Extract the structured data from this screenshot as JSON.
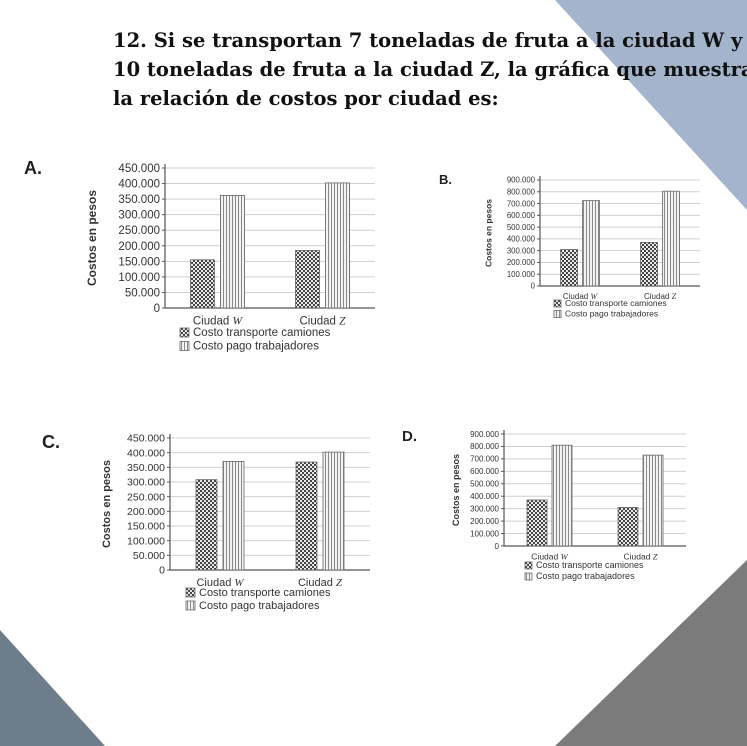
{
  "question": {
    "lines": [
      "12. Si se  transportan 7 toneladas de fruta  a la ciudad W y",
      "10 toneladas de fruta a la ciudad  Z,  la gráfica que  muestra",
      "la  relación de  costos por ciudad es:"
    ]
  },
  "decor_colors": {
    "slate": "#a3b4cc",
    "gray": "#7b7b7b",
    "dark_slate": "#6d7d8c"
  },
  "options": {
    "a": {
      "letter": "A."
    },
    "b": {
      "letter": "B."
    },
    "c": {
      "letter": "C."
    },
    "d": {
      "letter": "D."
    }
  },
  "chart_data": [
    {
      "type": "bar",
      "option": "A",
      "categories": [
        "Ciudad W",
        "Ciudad Z"
      ],
      "series": [
        {
          "name": "Costo transporte camiones",
          "values": [
            155000,
            185000
          ]
        },
        {
          "name": "Costo pago trabajadores",
          "values": [
            362000,
            402000
          ]
        }
      ],
      "ylabel": "Costos en pesos",
      "ylim": [
        0,
        450000
      ],
      "yticks": [
        "0",
        "50.000",
        "100.000",
        "150.000",
        "200.000",
        "250.000",
        "300.000",
        "350.000",
        "400.000",
        "450.000"
      ]
    },
    {
      "type": "bar",
      "option": "B",
      "categories": [
        "Ciudad W",
        "Ciudad Z"
      ],
      "series": [
        {
          "name": "Costo transporte camiones",
          "values": [
            310000,
            370000
          ]
        },
        {
          "name": "Costo pago trabajadores",
          "values": [
            725000,
            805000
          ]
        }
      ],
      "ylabel": "Costos en pesos",
      "ylim": [
        0,
        900000
      ],
      "yticks": [
        "0",
        "100.000",
        "200.000",
        "300.000",
        "400.000",
        "500.000",
        "600.000",
        "700.000",
        "800.000",
        "900.000"
      ]
    },
    {
      "type": "bar",
      "option": "C",
      "categories": [
        "Ciudad W",
        "Ciudad Z"
      ],
      "series": [
        {
          "name": "Costo transporte camiones",
          "values": [
            308000,
            368000
          ]
        },
        {
          "name": "Costo pago trabajadores",
          "values": [
            370000,
            402000
          ]
        }
      ],
      "ylabel": "Costos en pesos",
      "ylim": [
        0,
        450000
      ],
      "yticks": [
        "0",
        "50.000",
        "100.000",
        "150.000",
        "200.000",
        "250.000",
        "300.000",
        "350.000",
        "400.000",
        "450.000"
      ]
    },
    {
      "type": "bar",
      "option": "D",
      "categories": [
        "Ciudad W",
        "Ciudad Z"
      ],
      "series": [
        {
          "name": "Costo transporte camiones",
          "values": [
            370000,
            310000
          ]
        },
        {
          "name": "Costo pago trabajadores",
          "values": [
            810000,
            730000
          ]
        }
      ],
      "ylabel": "Costos en pesos",
      "ylim": [
        0,
        900000
      ],
      "yticks": [
        "0",
        "100.000",
        "200.000",
        "300.000",
        "400.000",
        "500.000",
        "600.000",
        "700.000",
        "800.000",
        "900.000"
      ]
    }
  ]
}
